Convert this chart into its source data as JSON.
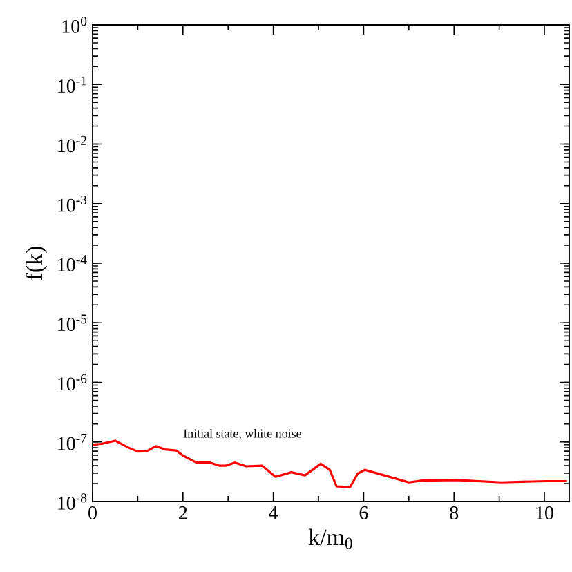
{
  "chart_data": {
    "type": "line",
    "xlabel": "k/m$_{0}$",
    "ylabel": "f(k)",
    "log": "y",
    "xlim": [
      0,
      10.55
    ],
    "xticks": [
      0,
      2,
      4,
      6,
      8,
      10
    ],
    "ylim": [
      1e-08,
      1
    ],
    "yticks": [
      {
        "value": 1e-08,
        "label": "10$^{-8}$"
      },
      {
        "value": 1e-07,
        "label": "10$^{-7}$"
      },
      {
        "value": 1e-06,
        "label": "10$^{-6}$"
      },
      {
        "value": 1e-05,
        "label": "10$^{-5}$"
      },
      {
        "value": 0.0001,
        "label": "10$^{-4}$"
      },
      {
        "value": 0.001,
        "label": "10$^{-3}$"
      },
      {
        "value": 0.01,
        "label": "10$^{-2}$"
      },
      {
        "value": 0.1,
        "label": "10$^{-1}$"
      },
      {
        "value": 1,
        "label": "10$^{0}$"
      }
    ],
    "marker": "none",
    "line_style": "solid",
    "annotations": [
      "Initial state, white noise"
    ],
    "series": [
      {
        "color": "#ff0000",
        "x": [
          0,
          0.2,
          0.5,
          0.8,
          1.0,
          1.2,
          1.4,
          1.6,
          1.85,
          2.0,
          2.3,
          2.6,
          2.8,
          2.95,
          3.15,
          3.4,
          3.75,
          4.05,
          4.4,
          4.7,
          5.05,
          5.25,
          5.4,
          5.7,
          5.87,
          6.03,
          6.35,
          7.0,
          7.3,
          8.05,
          9.05,
          10.05,
          10.5
        ],
        "values": [
          9e-08,
          9.3e-08,
          1.05e-07,
          8e-08,
          6.9e-08,
          7e-08,
          8.5e-08,
          7.5e-08,
          7.2e-08,
          5.9e-08,
          4.5e-08,
          4.5e-08,
          4e-08,
          4e-08,
          4.5e-08,
          3.9e-08,
          4e-08,
          2.6e-08,
          3.1e-08,
          2.75e-08,
          4.3e-08,
          3.4e-08,
          1.8e-08,
          1.75e-08,
          2.95e-08,
          3.4e-08,
          2.9e-08,
          2.1e-08,
          2.25e-08,
          2.3e-08,
          2.1e-08,
          2.2e-08,
          2.2e-08
        ]
      }
    ]
  }
}
